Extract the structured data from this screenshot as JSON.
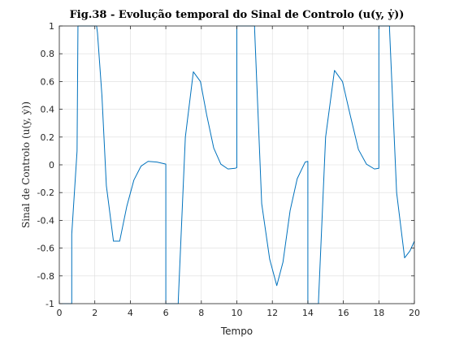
{
  "chart_data": {
    "type": "line",
    "title": "Fig.38 - Evolução temporal do Sinal de Controlo (u(y, ẏ))",
    "xlabel": "Tempo",
    "ylabel": "Sinal de Controlo (u(y, ẏ))",
    "xlim": [
      0,
      20
    ],
    "ylim": [
      -1,
      1
    ],
    "xticks": [
      0,
      2,
      4,
      6,
      8,
      10,
      12,
      14,
      16,
      18,
      20
    ],
    "yticks": [
      -1,
      -0.8,
      -0.6,
      -0.4,
      -0.2,
      0,
      0.2,
      0.4,
      0.6,
      0.8,
      1
    ],
    "xtick_labels": [
      "0",
      "2",
      "4",
      "6",
      "8",
      "10",
      "12",
      "14",
      "16",
      "18",
      "20"
    ],
    "ytick_labels": [
      "-1",
      "-0.8",
      "-0.6",
      "-0.4",
      "-0.2",
      "0",
      "0.2",
      "0.4",
      "0.6",
      "0.8",
      "1"
    ],
    "grid": true,
    "series": [
      {
        "color": "#0072BD",
        "x": [
          0,
          0.7,
          0.7,
          1.0,
          1.05,
          1.05,
          2.1,
          2.15,
          2.4,
          2.65,
          3.05,
          3.4,
          3.8,
          4.2,
          4.6,
          5.0,
          5.5,
          6.0,
          6.0,
          6.7,
          6.7,
          7.1,
          7.55,
          7.95,
          8.3,
          8.7,
          9.1,
          9.5,
          9.9,
          10.0,
          10.0,
          11.0,
          11.0,
          11.4,
          11.85,
          12.25,
          12.6,
          13.0,
          13.4,
          13.85,
          14.0,
          14.0,
          14.6,
          14.6,
          15.0,
          15.5,
          15.95,
          16.4,
          16.85,
          17.3,
          17.75,
          18.0,
          18.0,
          18.6,
          18.6,
          19.0,
          19.45,
          19.75,
          20.0
        ],
        "y": [
          -1,
          -1,
          -0.5,
          0.1,
          1,
          1,
          1,
          0.95,
          0.5,
          -0.15,
          -0.55,
          -0.55,
          -0.3,
          -0.11,
          -0.01,
          0.025,
          0.02,
          0.005,
          -1,
          -1,
          -0.98,
          0.2,
          0.67,
          0.6,
          0.36,
          0.12,
          0.005,
          -0.03,
          -0.025,
          -0.02,
          1,
          1,
          0.98,
          -0.28,
          -0.68,
          -0.87,
          -0.7,
          -0.33,
          -0.1,
          0.02,
          0.025,
          -1,
          -1,
          -0.98,
          0.2,
          0.68,
          0.6,
          0.35,
          0.11,
          0.005,
          -0.03,
          -0.025,
          1,
          1,
          0.98,
          -0.2,
          -0.67,
          -0.62,
          -0.55
        ]
      }
    ]
  }
}
